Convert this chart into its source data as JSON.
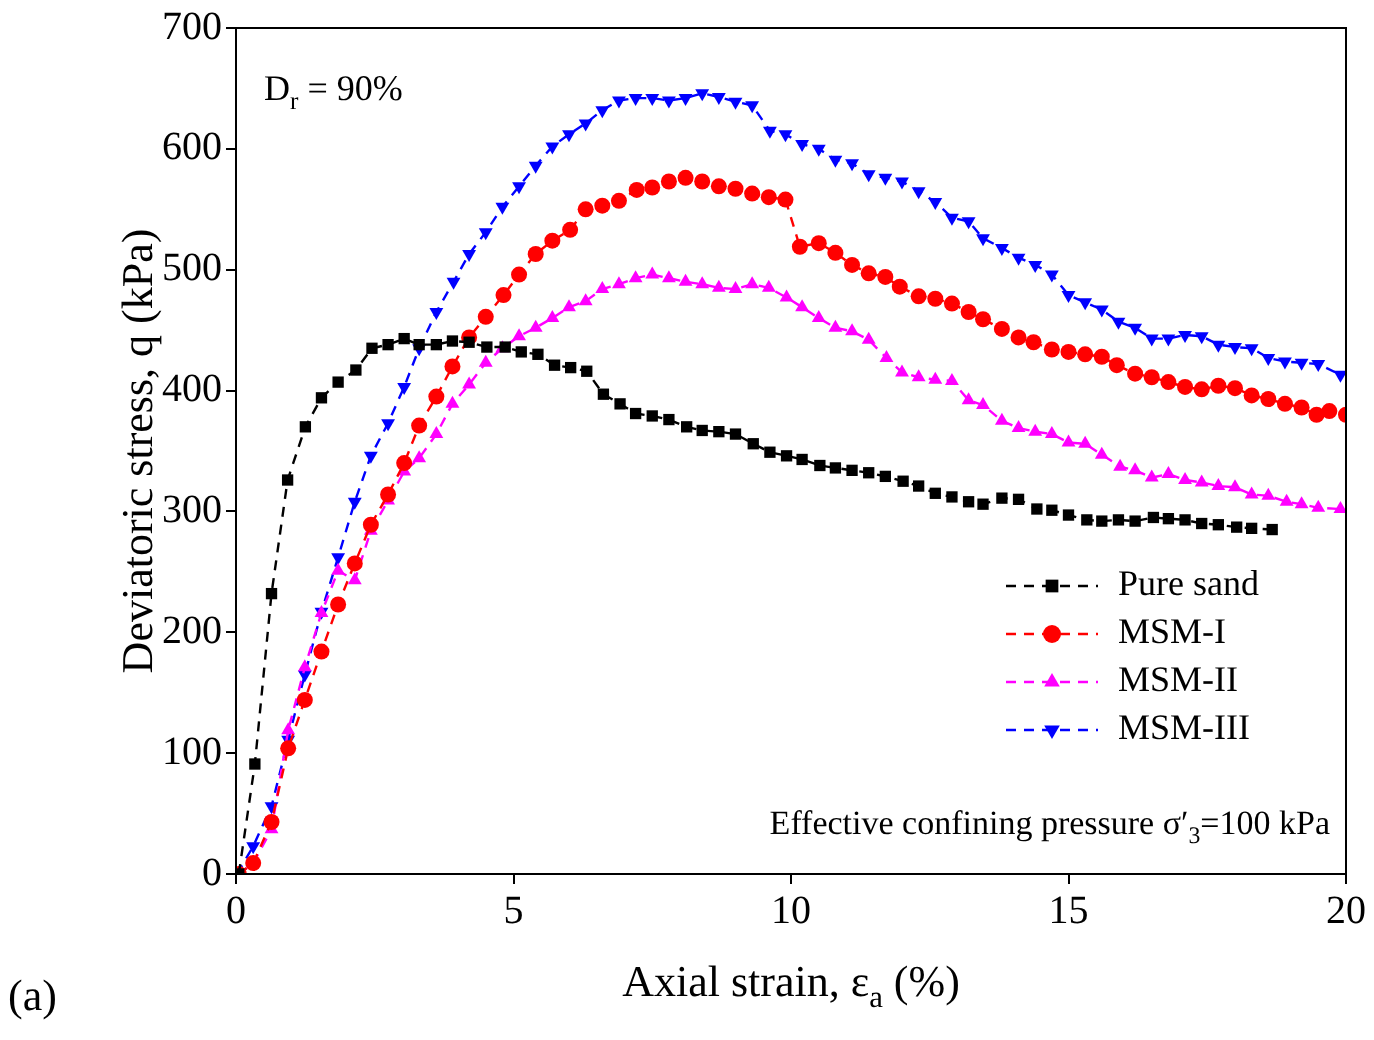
{
  "chart_data": {
    "type": "scatter",
    "xlabel": "Axial strain, ε$_{a}$ (%)",
    "ylabel": "Deviatoric stress, q (kPa)",
    "xlim": [
      0,
      20
    ],
    "xticks": [
      0,
      5,
      10,
      15,
      20
    ],
    "ylim": [
      0,
      700
    ],
    "yticks": [
      0,
      100,
      200,
      300,
      400,
      500,
      600,
      700
    ],
    "grid": false,
    "legend": "bottom right",
    "line_style": "dashed",
    "annotations": [
      "D$_{r}$ = 90%",
      "Effective confining pressure σ′$_{3}$=100 kPa",
      "(a)"
    ],
    "series": [
      {
        "name": "Pure sand",
        "type": "line",
        "marker": "square",
        "color": "#000000",
        "x": [
          0.05,
          0.34,
          0.64,
          0.93,
          1.25,
          1.54,
          1.84,
          2.16,
          2.45,
          2.74,
          3.03,
          3.3,
          3.61,
          3.9,
          4.2,
          4.52,
          4.85,
          5.14,
          5.44,
          5.74,
          6.03,
          6.32,
          6.62,
          6.92,
          7.2,
          7.5,
          7.8,
          8.12,
          8.4,
          8.7,
          9.0,
          9.32,
          9.62,
          9.92,
          10.2,
          10.52,
          10.8,
          11.1,
          11.4,
          11.7,
          12.02,
          12.3,
          12.6,
          12.9,
          13.2,
          13.46,
          13.8,
          14.1,
          14.43,
          14.7,
          15.0,
          15.33,
          15.6,
          15.9,
          16.2,
          16.53,
          16.8,
          17.1,
          17.4,
          17.7,
          18.03,
          18.3,
          18.67
        ],
        "values": [
          0,
          91,
          232,
          326,
          370,
          394,
          407,
          417,
          435,
          438,
          443,
          438,
          438,
          441,
          440,
          436,
          436,
          432,
          430,
          421,
          419,
          416,
          397,
          389,
          381,
          379,
          376,
          370,
          367,
          366,
          364,
          356,
          349,
          346,
          343,
          338,
          336,
          334,
          332,
          329,
          325,
          321,
          315,
          312,
          308,
          306,
          311,
          310,
          302,
          301,
          297,
          293,
          292,
          293,
          292,
          295,
          294,
          293,
          290,
          289,
          287,
          286,
          285
        ]
      },
      {
        "name": "MSM-I",
        "type": "line",
        "marker": "circle",
        "color": "#ff0000",
        "x": [
          0.05,
          0.31,
          0.64,
          0.94,
          1.24,
          1.54,
          1.84,
          2.14,
          2.43,
          2.74,
          3.03,
          3.3,
          3.61,
          3.9,
          4.2,
          4.5,
          4.82,
          5.1,
          5.4,
          5.7,
          6.02,
          6.3,
          6.6,
          6.9,
          7.22,
          7.5,
          7.8,
          8.1,
          8.4,
          8.7,
          9.0,
          9.3,
          9.6,
          9.9,
          10.16,
          10.5,
          10.8,
          11.1,
          11.4,
          11.7,
          11.96,
          12.3,
          12.6,
          12.9,
          13.2,
          13.46,
          13.8,
          14.1,
          14.37,
          14.7,
          15.0,
          15.3,
          15.6,
          15.87,
          16.2,
          16.5,
          16.8,
          17.1,
          17.4,
          17.7,
          18.0,
          18.3,
          18.6,
          18.9,
          19.2,
          19.47,
          19.7,
          20
        ],
        "values": [
          0,
          9,
          43,
          104,
          144,
          184,
          223,
          257,
          289,
          314,
          340,
          371,
          395,
          420,
          444,
          461,
          479,
          496,
          513,
          524,
          533,
          550,
          553,
          557,
          566,
          568,
          573,
          576,
          573,
          569,
          567,
          563,
          560,
          558,
          519,
          522,
          514,
          504,
          497,
          494,
          486,
          478,
          476,
          472,
          465,
          459,
          451,
          444,
          440,
          434,
          432,
          430,
          428,
          421,
          414,
          411,
          407,
          403,
          401,
          404,
          402,
          396,
          393,
          389,
          386,
          380,
          383,
          380
        ]
      },
      {
        "name": "MSM-II",
        "type": "line",
        "marker": "triangle",
        "color": "#ff00ff",
        "x": [
          0.05,
          0.31,
          0.64,
          0.94,
          1.24,
          1.54,
          1.84,
          2.14,
          2.43,
          2.74,
          3.03,
          3.3,
          3.61,
          3.9,
          4.2,
          4.5,
          4.8,
          5.1,
          5.4,
          5.7,
          6.0,
          6.3,
          6.6,
          6.9,
          7.2,
          7.5,
          7.8,
          8.1,
          8.4,
          8.7,
          9.0,
          9.3,
          9.6,
          9.92,
          10.2,
          10.5,
          10.8,
          11.1,
          11.4,
          11.72,
          12.0,
          12.3,
          12.6,
          12.9,
          13.2,
          13.46,
          13.8,
          14.1,
          14.4,
          14.7,
          15.0,
          15.3,
          15.6,
          15.93,
          16.2,
          16.5,
          16.8,
          17.1,
          17.4,
          17.7,
          18.0,
          18.3,
          18.6,
          18.93,
          19.2,
          19.5,
          19.9
        ],
        "values": [
          0,
          9,
          37,
          119,
          171,
          216,
          251,
          243,
          284,
          309,
          333,
          344,
          364,
          389,
          405,
          423,
          435,
          445,
          452,
          460,
          469,
          474,
          484,
          488,
          493,
          496,
          493,
          490,
          488,
          485,
          484,
          488,
          485,
          477,
          469,
          460,
          452,
          449,
          442,
          427,
          415,
          411,
          409,
          408,
          392,
          388,
          375,
          369,
          366,
          364,
          357,
          356,
          347,
          337,
          334,
          328,
          331,
          326,
          324,
          321,
          320,
          314,
          313,
          308,
          306,
          303,
          302
        ]
      },
      {
        "name": "MSM-III",
        "type": "line",
        "marker": "triangle-down",
        "color": "#0000ff",
        "x": [
          0.02,
          0.31,
          0.64,
          0.94,
          1.24,
          1.54,
          1.84,
          2.14,
          2.43,
          2.74,
          3.03,
          3.3,
          3.61,
          3.92,
          4.2,
          4.5,
          4.8,
          5.1,
          5.4,
          5.7,
          6.0,
          6.3,
          6.6,
          6.9,
          7.2,
          7.5,
          7.8,
          8.1,
          8.4,
          8.7,
          9.0,
          9.3,
          9.62,
          9.9,
          10.2,
          10.5,
          10.8,
          11.1,
          11.4,
          11.7,
          12.0,
          12.3,
          12.6,
          12.9,
          13.2,
          13.46,
          13.8,
          14.1,
          14.4,
          14.7,
          15.0,
          15.3,
          15.6,
          15.9,
          16.2,
          16.5,
          16.8,
          17.1,
          17.4,
          17.7,
          18.0,
          18.3,
          18.6,
          18.9,
          19.2,
          19.5,
          19.9
        ],
        "values": [
          0,
          23,
          56,
          111,
          165,
          217,
          262,
          308,
          346,
          373,
          403,
          435,
          465,
          490,
          513,
          531,
          552,
          569,
          586,
          602,
          612,
          621,
          632,
          640,
          642,
          642,
          640,
          642,
          646,
          643,
          639,
          636,
          615,
          612,
          604,
          600,
          591,
          588,
          579,
          576,
          573,
          565,
          556,
          543,
          540,
          526,
          518,
          510,
          504,
          496,
          479,
          473,
          467,
          457,
          452,
          443,
          443,
          446,
          445,
          438,
          436,
          435,
          427,
          424,
          423,
          422,
          413
        ]
      }
    ]
  }
}
